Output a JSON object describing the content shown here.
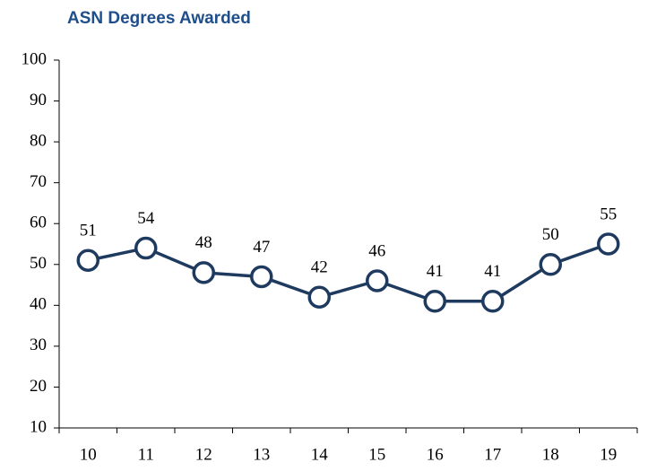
{
  "chart_data": {
    "type": "line",
    "title": "ASN Degrees Awarded",
    "categories": [
      "10",
      "11",
      "12",
      "13",
      "14",
      "15",
      "16",
      "17",
      "18",
      "19"
    ],
    "series": [
      {
        "name": "ASN Degrees Awarded",
        "color": "#1f3a5f",
        "values": [
          51,
          54,
          48,
          47,
          42,
          46,
          41,
          41,
          50,
          55
        ]
      }
    ],
    "ylim": [
      10,
      100
    ],
    "yticks": [
      10,
      20,
      30,
      40,
      50,
      60,
      70,
      80,
      90,
      100
    ],
    "grid": false,
    "markers": true,
    "data_labels": true
  }
}
